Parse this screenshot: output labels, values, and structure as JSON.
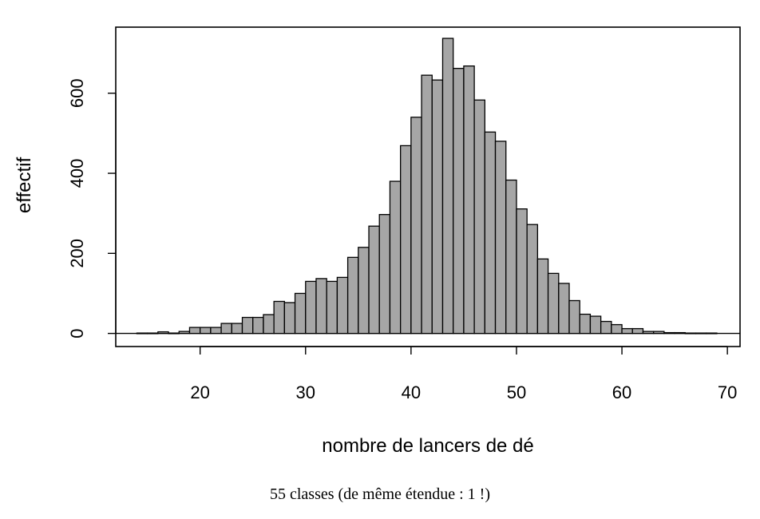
{
  "chart_data": {
    "type": "bar",
    "subtype": "histogram",
    "xlabel": "nombre de lancers de dé",
    "ylabel": "effectif",
    "caption": "55 classes (de même étendue : 1 !)",
    "bin_width": 1,
    "bin_starts": [
      14,
      15,
      16,
      17,
      18,
      19,
      20,
      21,
      22,
      23,
      24,
      25,
      26,
      27,
      28,
      29,
      30,
      31,
      32,
      33,
      34,
      35,
      36,
      37,
      38,
      39,
      40,
      41,
      42,
      43,
      44,
      45,
      46,
      47,
      48,
      49,
      50,
      51,
      52,
      53,
      54,
      55,
      56,
      57,
      58,
      59,
      60,
      61,
      62,
      63,
      64,
      65,
      66,
      67,
      68
    ],
    "values": [
      1,
      1,
      4,
      1,
      5,
      15,
      15,
      15,
      25,
      25,
      40,
      40,
      47,
      80,
      77,
      100,
      130,
      137,
      130,
      140,
      190,
      215,
      268,
      297,
      380,
      469,
      540,
      645,
      633,
      737,
      662,
      668,
      583,
      503,
      480,
      383,
      311,
      272,
      186,
      150,
      125,
      82,
      48,
      43,
      30,
      22,
      12,
      12,
      5,
      5,
      2,
      2,
      1,
      1,
      1
    ],
    "xticks": [
      20,
      30,
      40,
      50,
      60,
      70
    ],
    "yticks": [
      0,
      200,
      400,
      600
    ],
    "xlim": [
      12,
      71.2
    ],
    "ylim": [
      -32.7,
      765
    ],
    "colors": {
      "bar_fill": "#a6a6a6",
      "bar_stroke": "#000000"
    },
    "grid": false,
    "legend": "none"
  }
}
